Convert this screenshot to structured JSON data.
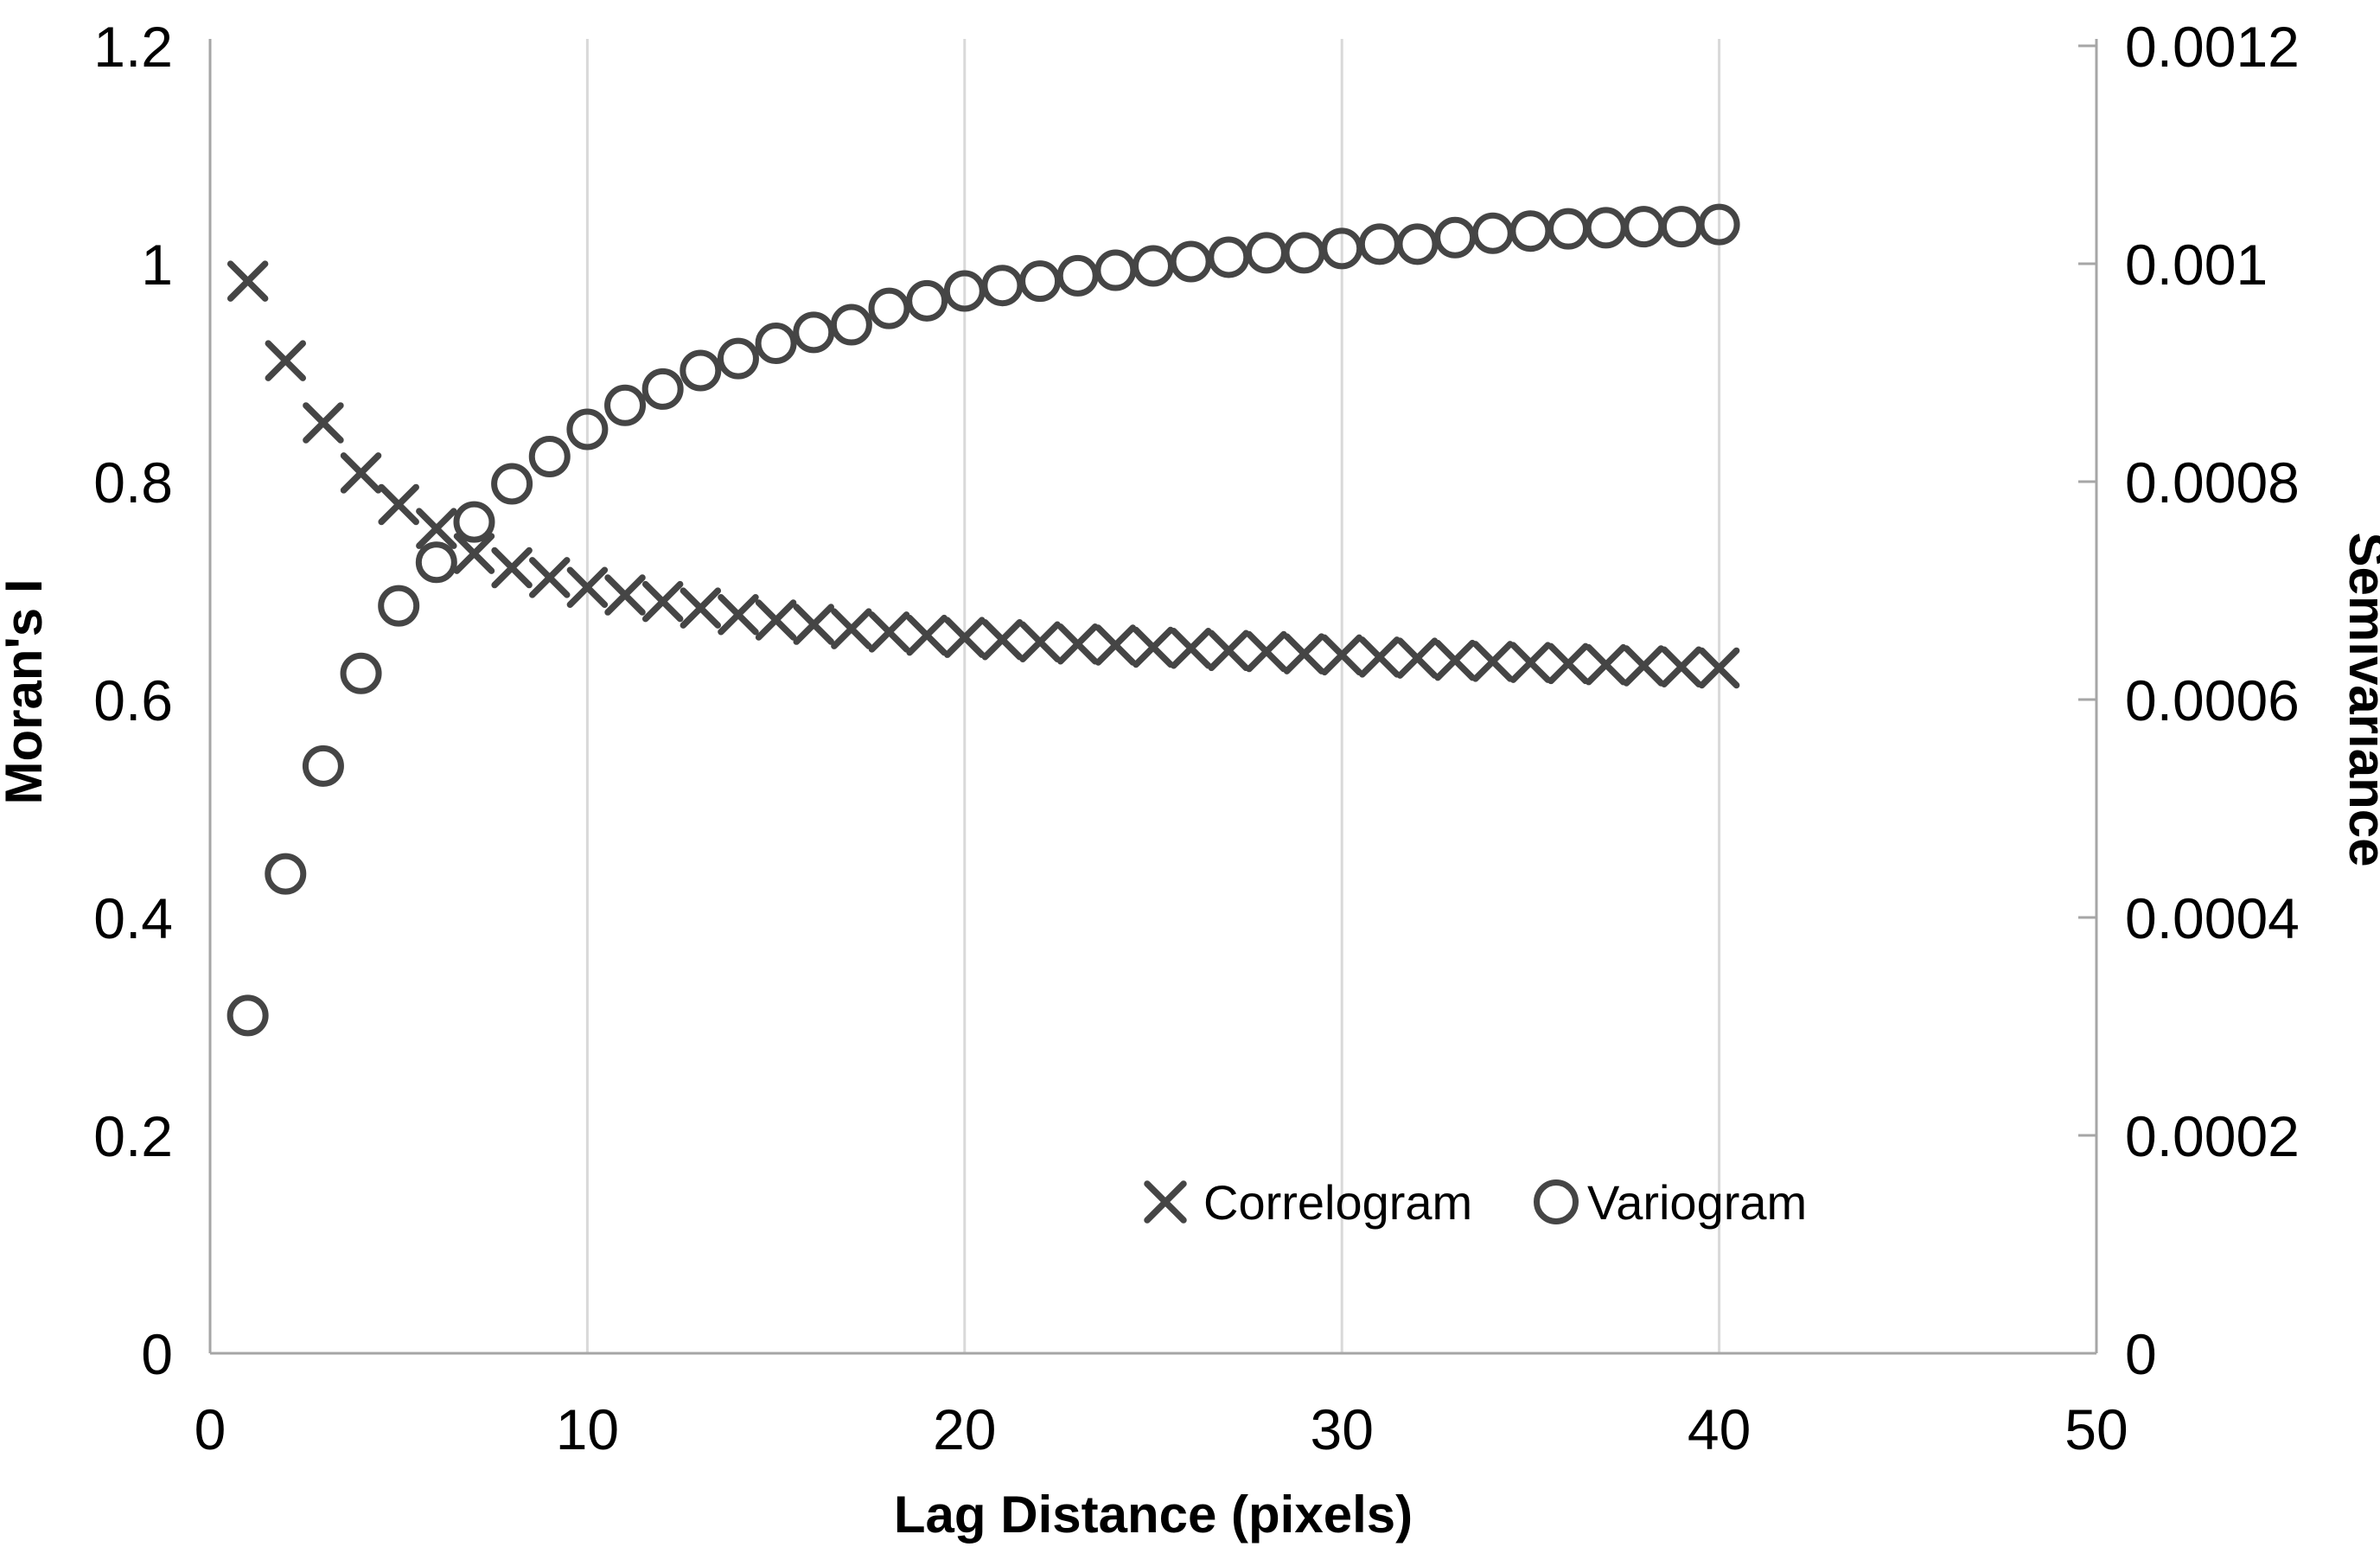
{
  "figure": {
    "background": "#ffffff",
    "marker_color": "#454545",
    "axis_color": "#a6a6a6",
    "grid_color": "#d9d9d9"
  },
  "chart_data": {
    "type": "scatter",
    "title": "",
    "xlabel": "Lag Distance (pixels)",
    "xlim": [
      0,
      50
    ],
    "x_tick_labels": [
      "0",
      "10",
      "20",
      "30",
      "40",
      "50"
    ],
    "x_tick_values": [
      0,
      10,
      20,
      30,
      40,
      50
    ],
    "grid": "vertical-gridlines-only",
    "left_axis": {
      "label": "Moran's I",
      "lim": [
        0,
        1.2
      ],
      "tick_labels": [
        "1.2",
        "1",
        "0.8",
        "0.6",
        "0.4",
        "0.2",
        "0"
      ],
      "tick_values": [
        1.2,
        1.0,
        0.8,
        0.6,
        0.4,
        0.2,
        0
      ]
    },
    "right_axis": {
      "label": "Semivariance",
      "lim": [
        0,
        0.0012
      ],
      "tick_labels": [
        "0.0012",
        "0.001",
        "0.0008",
        "0.0006",
        "0.0004",
        "0.0002",
        "0"
      ],
      "tick_values": [
        0.0012,
        0.001,
        0.0008,
        0.0006,
        0.0004,
        0.0002,
        0
      ]
    },
    "legend": {
      "position": "inside-bottom-center-right",
      "items": [
        {
          "label": "Correlogram",
          "marker": "x"
        },
        {
          "label": "Variogram",
          "marker": "o"
        }
      ]
    },
    "x": [
      1,
      2,
      3,
      4,
      5,
      6,
      7,
      8,
      9,
      10,
      11,
      12,
      13,
      14,
      15,
      16,
      17,
      18,
      19,
      20,
      21,
      22,
      23,
      24,
      25,
      26,
      27,
      28,
      29,
      30,
      31,
      32,
      33,
      34,
      35,
      36,
      37,
      38,
      39,
      40
    ],
    "series": [
      {
        "name": "Correlogram",
        "axis": "left",
        "marker": "x",
        "values": [
          0.984,
          0.911,
          0.854,
          0.808,
          0.779,
          0.757,
          0.734,
          0.721,
          0.712,
          0.703,
          0.696,
          0.69,
          0.684,
          0.678,
          0.673,
          0.669,
          0.665,
          0.662,
          0.659,
          0.657,
          0.655,
          0.653,
          0.651,
          0.65,
          0.648,
          0.647,
          0.645,
          0.644,
          0.642,
          0.641,
          0.639,
          0.638,
          0.636,
          0.635,
          0.634,
          0.633,
          0.632,
          0.631,
          0.63,
          0.629
        ]
      },
      {
        "name": "Variogram",
        "axis": "right",
        "marker": "o",
        "values": [
          0.00031,
          0.00044,
          0.000539,
          0.000624,
          0.000686,
          0.000726,
          0.000763,
          0.000798,
          0.000823,
          0.000848,
          0.00087,
          0.000885,
          0.000902,
          0.000913,
          0.000927,
          0.000937,
          0.000944,
          0.000959,
          0.000966,
          0.000975,
          0.00098,
          0.000984,
          0.000989,
          0.000994,
          0.000998,
          0.001002,
          0.001006,
          0.00101,
          0.00101,
          0.001014,
          0.001018,
          0.001018,
          0.001024,
          0.001028,
          0.00103,
          0.001032,
          0.001033,
          0.001034,
          0.001034,
          0.001036
        ]
      }
    ]
  }
}
